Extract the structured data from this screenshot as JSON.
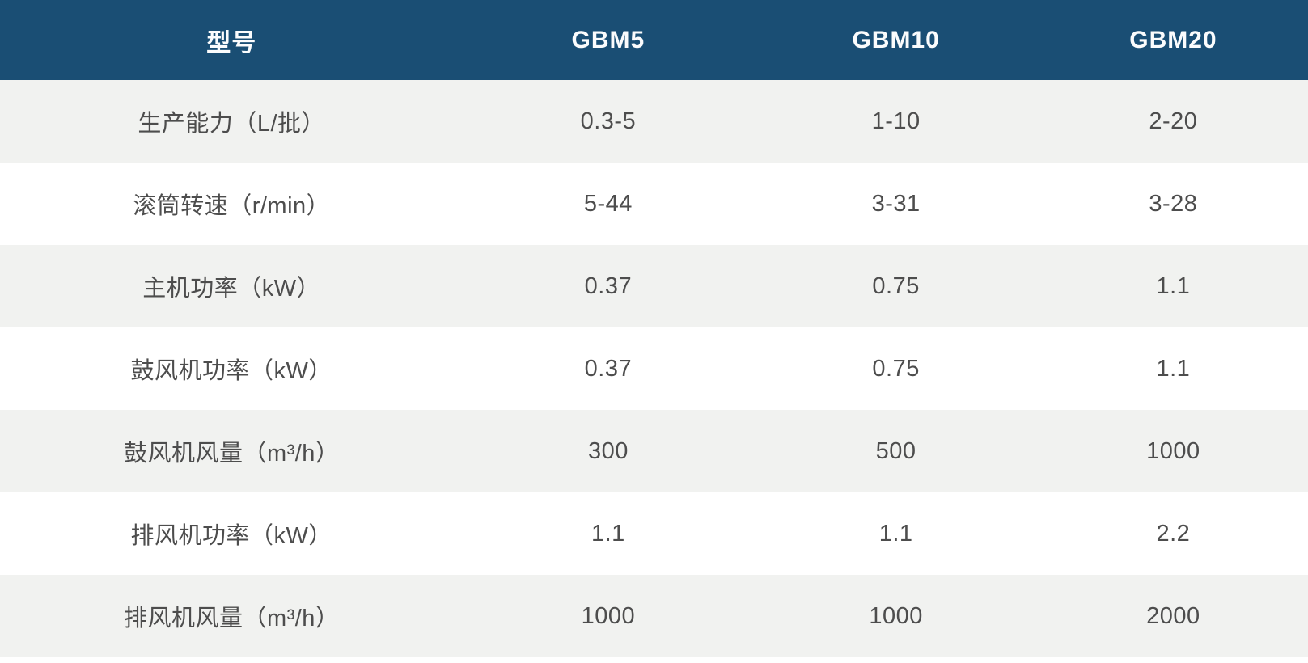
{
  "colors": {
    "header_bg": "#1a4e74",
    "header_text": "#fbfcfd",
    "row_shade_bg": "#f1f2f0",
    "row_plain_bg": "#ffffff",
    "body_text": "#4d4d4d"
  },
  "chart_data": {
    "type": "table",
    "title": "",
    "columns": [
      "型号",
      "GBM5",
      "GBM10",
      "GBM20"
    ],
    "rows": [
      [
        "生产能力（L/批）",
        "0.3-5",
        "1-10",
        "2-20"
      ],
      [
        "滚筒转速（r/min）",
        "5-44",
        "3-31",
        "3-28"
      ],
      [
        "主机功率（kW）",
        "0.37",
        "0.75",
        "1.1"
      ],
      [
        "鼓风机功率（kW）",
        "0.37",
        "0.75",
        "1.1"
      ],
      [
        "鼓风机风量（m³/h）",
        "300",
        "500",
        "1000"
      ],
      [
        "排风机功率（kW）",
        "1.1",
        "1.1",
        "2.2"
      ],
      [
        "排风机风量（m³/h）",
        "1000",
        "1000",
        "2000"
      ]
    ],
    "layout": {
      "header_position": "top",
      "row_striping": "odd-rows-shaded",
      "cell_alignment": "center",
      "grid": "off"
    }
  }
}
